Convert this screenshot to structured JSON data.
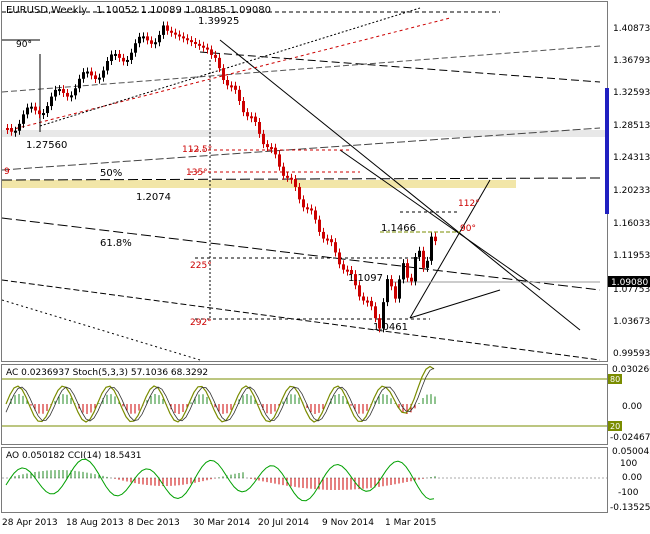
{
  "header": {
    "symbol": "EURUSD,Weekly",
    "ohlc": "1.10052 1.10089 1.08185 1.09080"
  },
  "price_axis": {
    "labels": [
      "1.40873",
      "1.36793",
      "1.32593",
      "1.28513",
      "1.24313",
      "1.20233",
      "1.16033",
      "1.11953",
      "1.07753",
      "1.03673",
      "0.99593"
    ],
    "current": "1.09080"
  },
  "annotations": {
    "high": "1.39925",
    "low1": "1.27560",
    "fib50": "50%",
    "level_1207": "1.2074",
    "fib618": "61.8%",
    "level_11466": "1.1466",
    "level_11097": "1.1097",
    "low2": "1.0461",
    "deg90_top": "90°",
    "deg1125": "112.5°",
    "deg135": "135°",
    "deg225": "225°",
    "deg292": "292°",
    "deg112": "112°",
    "deg90_right": "90°",
    "edge9": "9"
  },
  "ac_panel": {
    "label": "AC 0.0236937  Stoch(5,3,3) 57.1036 68.3292",
    "axis": [
      "0.030260",
      "80",
      "0.00",
      "20",
      "-0.024678"
    ]
  },
  "ao_panel": {
    "label": "AO 0.050182  CCI(14) 18.5431",
    "axis": [
      "0.050045",
      "100",
      "0.00",
      "-100",
      "-0.135252"
    ]
  },
  "time_axis": [
    "28 Apr 2013",
    "18 Aug 2013",
    "8 Dec 2013",
    "30 Mar 2014",
    "20 Jul 2014",
    "9 Nov 2014",
    "1 Mar 2015"
  ],
  "colors": {
    "bull": "#000000",
    "bear": "#cc0000",
    "fib_band": "#f2e6a8",
    "sel_bar": "#2020c0",
    "indicator_line": "#7a8c00",
    "ao_line": "#00a000"
  }
}
